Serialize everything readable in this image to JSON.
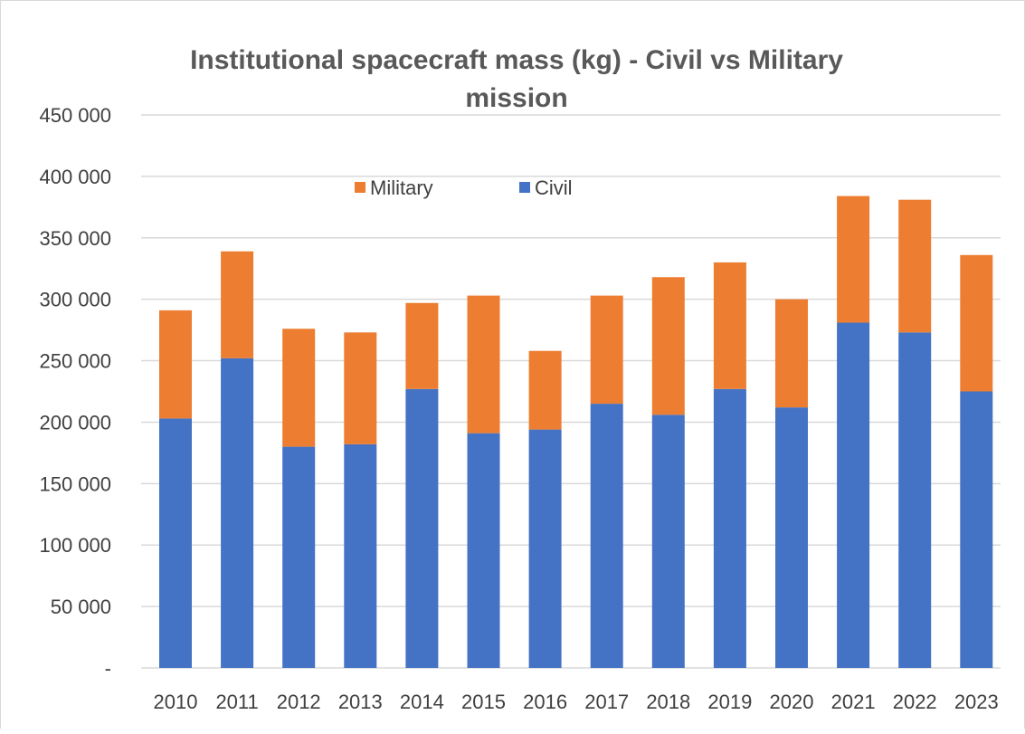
{
  "chart_data": {
    "type": "bar",
    "stacked": true,
    "title_lines": [
      "Institutional spacecraft mass (kg) - Civil vs Military",
      "mission"
    ],
    "xlabel": "",
    "ylabel": "",
    "categories": [
      "2010",
      "2011",
      "2012",
      "2013",
      "2014",
      "2015",
      "2016",
      "2017",
      "2018",
      "2019",
      "2020",
      "2021",
      "2022",
      "2023"
    ],
    "series": [
      {
        "name": "Civil",
        "color": "#4472C4",
        "values": [
          203000,
          252000,
          180000,
          182000,
          227000,
          191000,
          194000,
          215000,
          206000,
          227000,
          212000,
          281000,
          273000,
          225000
        ]
      },
      {
        "name": "Military",
        "color": "#ED7D31",
        "values": [
          88000,
          87000,
          96000,
          91000,
          70000,
          112000,
          64000,
          88000,
          112000,
          103000,
          88000,
          103000,
          108000,
          111000
        ]
      }
    ],
    "legend_order": [
      "Military",
      "Civil"
    ],
    "legend_position": "top-center",
    "ylim": [
      0,
      450000
    ],
    "yticks": [
      0,
      50000,
      100000,
      150000,
      200000,
      250000,
      300000,
      350000,
      400000,
      450000
    ],
    "ytick_labels": [
      "-",
      "50 000",
      "100 000",
      "150 000",
      "200 000",
      "250 000",
      "300 000",
      "350 000",
      "400 000",
      "450 000"
    ],
    "grid": true,
    "gridline_color": "#d9d9d9"
  }
}
